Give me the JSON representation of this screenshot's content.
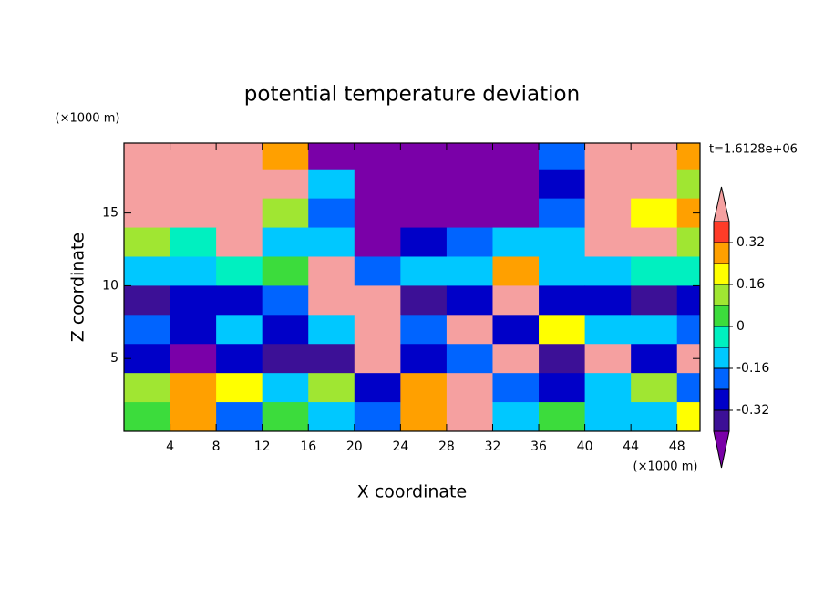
{
  "chart_data": {
    "type": "contour",
    "title": "potential temperature deviation",
    "x_label": "X coordinate",
    "y_label": "Z coordinate",
    "x_unit_label": "(×1000 m)",
    "y_unit_label": "(×1000 m)",
    "time_label": "t=1.6128e+06",
    "xlim": [
      0,
      50
    ],
    "ylim": [
      0,
      19.8
    ],
    "xticks": [
      4,
      8,
      12,
      16,
      20,
      24,
      28,
      32,
      36,
      40,
      44,
      48
    ],
    "yticks": [
      5,
      10,
      15
    ],
    "x": [
      2,
      6,
      10,
      14,
      18,
      22,
      26,
      30,
      34,
      38,
      42,
      46,
      50
    ],
    "y": [
      19,
      17,
      15,
      13,
      11,
      9,
      7,
      5,
      3,
      1
    ],
    "z": [
      [
        0.5,
        0.5,
        0.5,
        0.3,
        -0.5,
        -0.5,
        -0.5,
        -0.5,
        -0.5,
        -0.2,
        0.5,
        0.5,
        0.3
      ],
      [
        0.5,
        0.5,
        0.5,
        0.5,
        -0.1,
        -0.5,
        -0.5,
        -0.5,
        -0.5,
        -0.3,
        0.5,
        0.5,
        0.1
      ],
      [
        0.5,
        0.5,
        0.5,
        0.1,
        -0.2,
        -0.5,
        -0.5,
        -0.5,
        -0.5,
        -0.2,
        0.5,
        0.2,
        0.3
      ],
      [
        0.1,
        -0.05,
        0.5,
        -0.1,
        -0.15,
        -0.45,
        -0.3,
        -0.2,
        -0.12,
        -0.1,
        0.5,
        0.5,
        0.1
      ],
      [
        -0.1,
        -0.12,
        -0.06,
        0.05,
        0.5,
        -0.2,
        -0.12,
        -0.1,
        0.3,
        -0.12,
        -0.1,
        -0.06,
        -0.05
      ],
      [
        -0.35,
        -0.3,
        -0.3,
        -0.2,
        0.5,
        0.5,
        -0.35,
        -0.3,
        0.5,
        -0.3,
        -0.3,
        -0.35,
        -0.3
      ],
      [
        -0.2,
        -0.3,
        -0.1,
        -0.3,
        -0.1,
        0.5,
        -0.2,
        0.5,
        -0.3,
        0.2,
        -0.1,
        -0.15,
        -0.2
      ],
      [
        -0.3,
        -0.45,
        -0.3,
        -0.35,
        -0.4,
        0.5,
        -0.3,
        -0.2,
        0.5,
        -0.35,
        0.5,
        -0.3,
        0.5
      ],
      [
        0.1,
        0.3,
        0.2,
        -0.1,
        0.1,
        -0.3,
        0.3,
        0.5,
        -0.2,
        -0.3,
        -0.1,
        0.1,
        -0.2
      ],
      [
        0.05,
        0.3,
        -0.2,
        0.05,
        -0.1,
        -0.2,
        0.3,
        0.5,
        -0.1,
        0.05,
        -0.1,
        -0.1,
        0.2
      ]
    ],
    "levels": [
      -0.4,
      -0.32,
      -0.24,
      -0.16,
      -0.08,
      0,
      0.08,
      0.16,
      0.24,
      0.32,
      0.4
    ],
    "colors": [
      "#7a00a8",
      "#3c1096",
      "#0000c8",
      "#0064ff",
      "#00c8ff",
      "#00f0c0",
      "#3cdc3c",
      "#a0e632",
      "#ffff00",
      "#ffa000",
      "#ff3c28",
      "#f5a0a0"
    ],
    "colorbar_ticks": [
      -0.32,
      -0.16,
      0,
      0.16,
      0.32
    ]
  }
}
